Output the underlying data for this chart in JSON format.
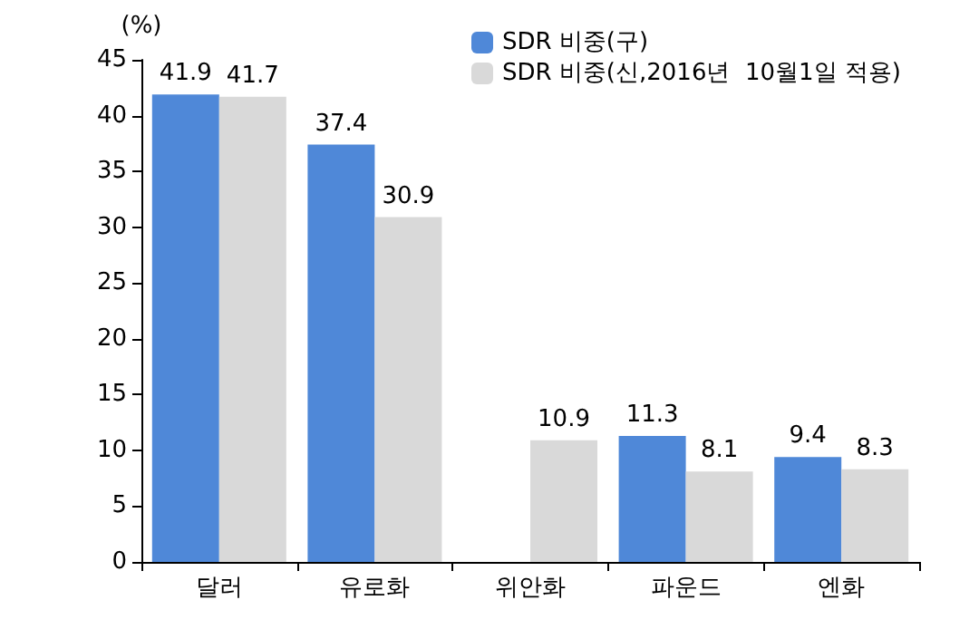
{
  "chart_data": {
    "type": "bar",
    "ylabel": "(%)",
    "categories": [
      "달러",
      "유로화",
      "위안화",
      "파운드",
      "엔화"
    ],
    "series": [
      {
        "name": "SDR 비중(구)",
        "color": "#4f88d8",
        "values": [
          41.9,
          37.4,
          null,
          11.3,
          9.4
        ]
      },
      {
        "name": "SDR 비중(신,2016년  10월1일 적용)",
        "color": "#d9d9d9",
        "values": [
          41.7,
          30.9,
          10.9,
          8.1,
          8.3
        ]
      }
    ],
    "ylim": [
      0,
      45
    ],
    "yticks": [
      0,
      5,
      10,
      15,
      20,
      25,
      30,
      35,
      40,
      45
    ],
    "grid": false,
    "legend": "top right",
    "data_labels": true
  }
}
